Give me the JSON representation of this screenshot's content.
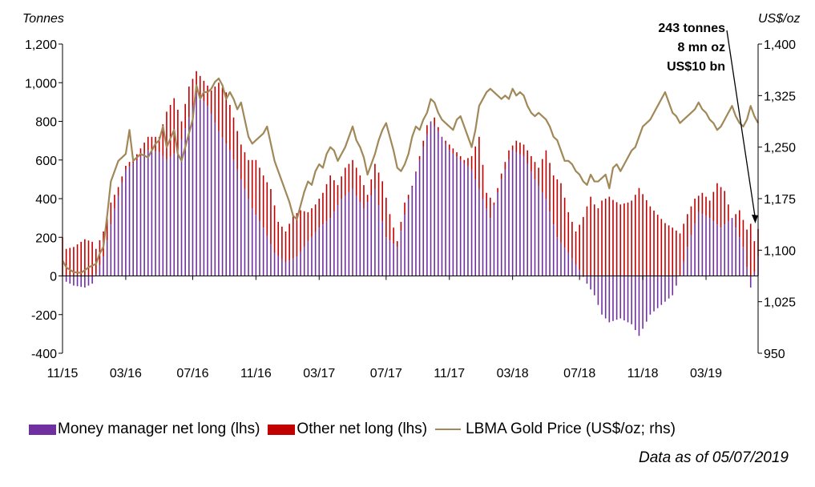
{
  "chart_data": {
    "type": "bar+line",
    "left_axis_label": "Tonnes",
    "right_axis_label": "US$/oz",
    "left_ylim": [
      -400,
      1200
    ],
    "right_ylim": [
      950,
      1400
    ],
    "left_ticks": [
      "1,200",
      "1,000",
      "800",
      "600",
      "400",
      "200",
      "0",
      "-200",
      "-400"
    ],
    "right_ticks": [
      "1,400",
      "1,325",
      "1,250",
      "1,175",
      "1,100",
      "1,025",
      "950"
    ],
    "x_tick_labels": [
      "11/15",
      "03/16",
      "07/16",
      "11/16",
      "03/17",
      "07/17",
      "11/17",
      "03/18",
      "07/18",
      "11/18",
      "03/19"
    ],
    "x_tick_weeks": [
      0,
      17,
      35,
      52,
      69,
      87,
      104,
      121,
      139,
      156,
      173
    ],
    "weeks_count": 188,
    "mm_anchors": [
      [
        0,
        0
      ],
      [
        1,
        -30
      ],
      [
        3,
        -50
      ],
      [
        6,
        -60
      ],
      [
        8,
        -40
      ],
      [
        9,
        10
      ],
      [
        11,
        100
      ],
      [
        14,
        350
      ],
      [
        17,
        550
      ],
      [
        20,
        600
      ],
      [
        23,
        650
      ],
      [
        26,
        640
      ],
      [
        28,
        600
      ],
      [
        31,
        650
      ],
      [
        34,
        820
      ],
      [
        36,
        950
      ],
      [
        39,
        880
      ],
      [
        42,
        750
      ],
      [
        45,
        650
      ],
      [
        48,
        500
      ],
      [
        51,
        350
      ],
      [
        54,
        250
      ],
      [
        57,
        120
      ],
      [
        60,
        70
      ],
      [
        63,
        100
      ],
      [
        66,
        180
      ],
      [
        69,
        250
      ],
      [
        72,
        300
      ],
      [
        75,
        400
      ],
      [
        78,
        450
      ],
      [
        81,
        350
      ],
      [
        84,
        450
      ],
      [
        87,
        200
      ],
      [
        90,
        150
      ],
      [
        93,
        400
      ],
      [
        96,
        600
      ],
      [
        99,
        800
      ],
      [
        101,
        750
      ],
      [
        104,
        650
      ],
      [
        107,
        600
      ],
      [
        110,
        550
      ],
      [
        113,
        400
      ],
      [
        115,
        300
      ],
      [
        118,
        500
      ],
      [
        121,
        650
      ],
      [
        124,
        620
      ],
      [
        127,
        500
      ],
      [
        130,
        400
      ],
      [
        133,
        200
      ],
      [
        136,
        120
      ],
      [
        139,
        30
      ],
      [
        141,
        -40
      ],
      [
        143,
        -100
      ],
      [
        145,
        -200
      ],
      [
        147,
        -240
      ],
      [
        150,
        -220
      ],
      [
        153,
        -250
      ],
      [
        155,
        -310
      ],
      [
        158,
        -200
      ],
      [
        161,
        -150
      ],
      [
        164,
        -100
      ],
      [
        166,
        0
      ],
      [
        168,
        150
      ],
      [
        171,
        330
      ],
      [
        174,
        300
      ],
      [
        177,
        250
      ],
      [
        180,
        300
      ],
      [
        183,
        150
      ],
      [
        185,
        -60
      ],
      [
        187,
        100
      ]
    ],
    "total_anchors": [
      [
        0,
        200
      ],
      [
        1,
        110
      ],
      [
        3,
        100
      ],
      [
        6,
        130
      ],
      [
        9,
        140
      ],
      [
        11,
        230
      ],
      [
        13,
        380
      ],
      [
        15,
        460
      ],
      [
        17,
        570
      ],
      [
        20,
        630
      ],
      [
        23,
        720
      ],
      [
        26,
        720
      ],
      [
        28,
        850
      ],
      [
        30,
        920
      ],
      [
        32,
        800
      ],
      [
        34,
        980
      ],
      [
        36,
        1060
      ],
      [
        38,
        1010
      ],
      [
        40,
        960
      ],
      [
        42,
        1000
      ],
      [
        44,
        950
      ],
      [
        46,
        820
      ],
      [
        48,
        680
      ],
      [
        50,
        600
      ],
      [
        52,
        600
      ],
      [
        54,
        520
      ],
      [
        56,
        450
      ],
      [
        58,
        280
      ],
      [
        60,
        230
      ],
      [
        62,
        310
      ],
      [
        64,
        340
      ],
      [
        66,
        330
      ],
      [
        68,
        370
      ],
      [
        70,
        430
      ],
      [
        72,
        520
      ],
      [
        74,
        470
      ],
      [
        76,
        560
      ],
      [
        78,
        600
      ],
      [
        80,
        520
      ],
      [
        82,
        420
      ],
      [
        84,
        580
      ],
      [
        86,
        490
      ],
      [
        88,
        320
      ],
      [
        90,
        180
      ],
      [
        92,
        380
      ],
      [
        94,
        460
      ],
      [
        96,
        620
      ],
      [
        98,
        780
      ],
      [
        100,
        820
      ],
      [
        102,
        720
      ],
      [
        104,
        680
      ],
      [
        106,
        640
      ],
      [
        108,
        600
      ],
      [
        110,
        620
      ],
      [
        112,
        720
      ],
      [
        114,
        430
      ],
      [
        116,
        380
      ],
      [
        118,
        530
      ],
      [
        120,
        650
      ],
      [
        122,
        700
      ],
      [
        124,
        680
      ],
      [
        126,
        620
      ],
      [
        128,
        560
      ],
      [
        130,
        650
      ],
      [
        132,
        520
      ],
      [
        134,
        480
      ],
      [
        136,
        330
      ],
      [
        138,
        230
      ],
      [
        140,
        300
      ],
      [
        142,
        340
      ],
      [
        144,
        200
      ],
      [
        146,
        180
      ],
      [
        148,
        160
      ],
      [
        150,
        150
      ],
      [
        152,
        140
      ],
      [
        154,
        140
      ],
      [
        156,
        150
      ],
      [
        158,
        160
      ],
      [
        160,
        150
      ],
      [
        162,
        140
      ],
      [
        164,
        150
      ],
      [
        166,
        220
      ],
      [
        168,
        320
      ],
      [
        170,
        400
      ],
      [
        172,
        430
      ],
      [
        174,
        390
      ],
      [
        176,
        480
      ],
      [
        178,
        440
      ],
      [
        180,
        300
      ],
      [
        182,
        340
      ],
      [
        184,
        240
      ],
      [
        186,
        180
      ],
      [
        187,
        243
      ]
    ],
    "price_anchors": [
      [
        0,
        1085
      ],
      [
        1,
        1075
      ],
      [
        3,
        1068
      ],
      [
        5,
        1067
      ],
      [
        7,
        1075
      ],
      [
        9,
        1080
      ],
      [
        10,
        1095
      ],
      [
        11,
        1105
      ],
      [
        12,
        1150
      ],
      [
        13,
        1200
      ],
      [
        14,
        1215
      ],
      [
        15,
        1230
      ],
      [
        17,
        1240
      ],
      [
        18,
        1275
      ],
      [
        19,
        1230
      ],
      [
        21,
        1240
      ],
      [
        23,
        1235
      ],
      [
        25,
        1255
      ],
      [
        26,
        1260
      ],
      [
        27,
        1280
      ],
      [
        28,
        1250
      ],
      [
        30,
        1275
      ],
      [
        31,
        1240
      ],
      [
        32,
        1230
      ],
      [
        34,
        1270
      ],
      [
        35,
        1290
      ],
      [
        36,
        1340
      ],
      [
        37,
        1320
      ],
      [
        38,
        1330
      ],
      [
        39,
        1330
      ],
      [
        40,
        1335
      ],
      [
        41,
        1345
      ],
      [
        42,
        1350
      ],
      [
        43,
        1340
      ],
      [
        44,
        1320
      ],
      [
        45,
        1330
      ],
      [
        46,
        1320
      ],
      [
        47,
        1305
      ],
      [
        48,
        1315
      ],
      [
        49,
        1290
      ],
      [
        50,
        1265
      ],
      [
        51,
        1255
      ],
      [
        52,
        1260
      ],
      [
        53,
        1265
      ],
      [
        54,
        1270
      ],
      [
        55,
        1280
      ],
      [
        56,
        1255
      ],
      [
        57,
        1230
      ],
      [
        58,
        1215
      ],
      [
        59,
        1200
      ],
      [
        60,
        1185
      ],
      [
        61,
        1170
      ],
      [
        62,
        1150
      ],
      [
        63,
        1145
      ],
      [
        64,
        1165
      ],
      [
        65,
        1185
      ],
      [
        66,
        1200
      ],
      [
        67,
        1195
      ],
      [
        68,
        1215
      ],
      [
        69,
        1225
      ],
      [
        70,
        1220
      ],
      [
        71,
        1240
      ],
      [
        72,
        1250
      ],
      [
        73,
        1245
      ],
      [
        74,
        1230
      ],
      [
        75,
        1240
      ],
      [
        76,
        1250
      ],
      [
        77,
        1265
      ],
      [
        78,
        1280
      ],
      [
        79,
        1260
      ],
      [
        80,
        1250
      ],
      [
        81,
        1235
      ],
      [
        82,
        1210
      ],
      [
        83,
        1225
      ],
      [
        84,
        1240
      ],
      [
        85,
        1260
      ],
      [
        86,
        1275
      ],
      [
        87,
        1285
      ],
      [
        88,
        1265
      ],
      [
        89,
        1245
      ],
      [
        90,
        1220
      ],
      [
        91,
        1215
      ],
      [
        92,
        1225
      ],
      [
        93,
        1240
      ],
      [
        94,
        1265
      ],
      [
        95,
        1280
      ],
      [
        96,
        1275
      ],
      [
        97,
        1290
      ],
      [
        98,
        1300
      ],
      [
        99,
        1320
      ],
      [
        100,
        1315
      ],
      [
        101,
        1300
      ],
      [
        102,
        1290
      ],
      [
        103,
        1285
      ],
      [
        104,
        1280
      ],
      [
        105,
        1275
      ],
      [
        106,
        1290
      ],
      [
        107,
        1295
      ],
      [
        108,
        1280
      ],
      [
        109,
        1265
      ],
      [
        110,
        1250
      ],
      [
        111,
        1275
      ],
      [
        112,
        1310
      ],
      [
        113,
        1320
      ],
      [
        114,
        1330
      ],
      [
        115,
        1335
      ],
      [
        116,
        1330
      ],
      [
        117,
        1325
      ],
      [
        118,
        1320
      ],
      [
        119,
        1325
      ],
      [
        120,
        1320
      ],
      [
        121,
        1335
      ],
      [
        122,
        1325
      ],
      [
        123,
        1330
      ],
      [
        124,
        1325
      ],
      [
        125,
        1310
      ],
      [
        126,
        1300
      ],
      [
        127,
        1295
      ],
      [
        128,
        1300
      ],
      [
        129,
        1295
      ],
      [
        130,
        1290
      ],
      [
        131,
        1280
      ],
      [
        132,
        1265
      ],
      [
        133,
        1260
      ],
      [
        134,
        1245
      ],
      [
        135,
        1230
      ],
      [
        136,
        1230
      ],
      [
        137,
        1225
      ],
      [
        138,
        1215
      ],
      [
        139,
        1210
      ],
      [
        140,
        1200
      ],
      [
        141,
        1195
      ],
      [
        142,
        1210
      ],
      [
        143,
        1200
      ],
      [
        144,
        1200
      ],
      [
        145,
        1205
      ],
      [
        146,
        1210
      ],
      [
        147,
        1190
      ],
      [
        148,
        1220
      ],
      [
        149,
        1225
      ],
      [
        150,
        1215
      ],
      [
        151,
        1225
      ],
      [
        152,
        1235
      ],
      [
        153,
        1245
      ],
      [
        154,
        1250
      ],
      [
        155,
        1265
      ],
      [
        156,
        1280
      ],
      [
        157,
        1285
      ],
      [
        158,
        1290
      ],
      [
        159,
        1300
      ],
      [
        160,
        1310
      ],
      [
        161,
        1320
      ],
      [
        162,
        1330
      ],
      [
        163,
        1315
      ],
      [
        164,
        1300
      ],
      [
        165,
        1295
      ],
      [
        166,
        1285
      ],
      [
        167,
        1290
      ],
      [
        168,
        1295
      ],
      [
        169,
        1300
      ],
      [
        170,
        1305
      ],
      [
        171,
        1315
      ],
      [
        172,
        1305
      ],
      [
        173,
        1300
      ],
      [
        174,
        1290
      ],
      [
        175,
        1285
      ],
      [
        176,
        1275
      ],
      [
        177,
        1280
      ],
      [
        178,
        1290
      ],
      [
        179,
        1300
      ],
      [
        180,
        1310
      ],
      [
        181,
        1295
      ],
      [
        182,
        1285
      ],
      [
        183,
        1280
      ],
      [
        184,
        1290
      ],
      [
        185,
        1310
      ],
      [
        186,
        1295
      ],
      [
        187,
        1285
      ]
    ],
    "series_colors": {
      "money_manager": "#7030a0",
      "other": "#c00000",
      "price": "#a08858",
      "axis": "#000000"
    },
    "annotation": {
      "line1": "243 tonnes",
      "line2": "8 mn oz",
      "line3": "US$10 bn",
      "points_to_week": 187,
      "points_to_value": 243
    }
  },
  "legend": {
    "money_manager": "Money manager net long (lhs)",
    "other": "Other net long (lhs)",
    "price": "LBMA Gold Price (US$/oz; rhs)"
  },
  "footnote": "Data as of 05/07/2019"
}
